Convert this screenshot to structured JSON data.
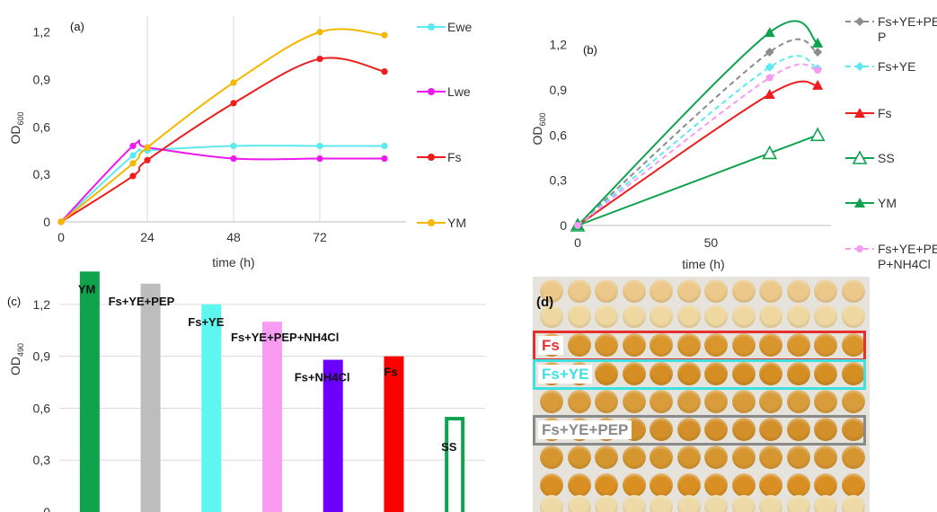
{
  "chart_data": [
    {
      "type": "line",
      "panel_label": "(a)",
      "xlabel": "time (h)",
      "ylabel": "OD",
      "ylabel_sub": "600",
      "xlim": [
        0,
        96
      ],
      "ylim": [
        0,
        1.3
      ],
      "x_ticks": [
        0,
        24,
        48,
        72
      ],
      "x_tick_labels": [
        "0",
        "24",
        "48",
        "72"
      ],
      "y_ticks": [
        0,
        0.3,
        0.6,
        0.9,
        1.2
      ],
      "y_tick_labels": [
        "0",
        "0,3",
        "0,6",
        "0,9",
        "1,2"
      ],
      "grid": "vertical",
      "legend_position": "right",
      "series": [
        {
          "name": "Ewe",
          "color": "#5ce9ef",
          "x": [
            0,
            20,
            24,
            48,
            72,
            90
          ],
          "y": [
            0,
            0.42,
            0.45,
            0.48,
            0.48,
            0.48
          ]
        },
        {
          "name": "Lwe",
          "color": "#ee18ee",
          "x": [
            0,
            20,
            24,
            48,
            72,
            90
          ],
          "y": [
            0,
            0.48,
            0.47,
            0.4,
            0.4,
            0.4
          ]
        },
        {
          "name": "Fs",
          "color": "#ee1c1c",
          "x": [
            0,
            20,
            24,
            48,
            72,
            90
          ],
          "y": [
            0,
            0.29,
            0.39,
            0.75,
            1.03,
            0.95
          ]
        },
        {
          "name": "YM",
          "color": "#f5b800",
          "x": [
            0,
            20,
            24,
            48,
            72,
            90
          ],
          "y": [
            0,
            0.37,
            0.47,
            0.88,
            1.2,
            1.18
          ]
        }
      ]
    },
    {
      "type": "line",
      "panel_label": "(b)",
      "xlabel": "time (h)",
      "ylabel": "OD",
      "ylabel_sub": "600",
      "xlim": [
        0,
        95
      ],
      "ylim": [
        0,
        1.4
      ],
      "x_ticks": [
        0,
        50
      ],
      "x_tick_labels": [
        "0",
        "50"
      ],
      "y_ticks": [
        0,
        0.3,
        0.6,
        0.9,
        1.2
      ],
      "y_tick_labels": [
        "0",
        "0,3",
        "0,6",
        "0,9",
        "1,2"
      ],
      "grid": "none",
      "legend_position": "right",
      "series": [
        {
          "name": "Fs+YE+PEP",
          "legend_lines": [
            "Fs+YE+PE",
            "P"
          ],
          "color": "#8c8c8c",
          "style": "dashed",
          "marker": "diamond",
          "x": [
            0,
            72,
            90
          ],
          "y": [
            0,
            1.15,
            1.15
          ]
        },
        {
          "name": "Fs+YE",
          "legend_lines": [
            "Fs+YE"
          ],
          "color": "#5ce9ef",
          "style": "dashed",
          "marker": "diamond",
          "x": [
            0,
            72,
            90
          ],
          "y": [
            0,
            1.05,
            1.04
          ]
        },
        {
          "name": "Fs",
          "legend_lines": [
            "Fs"
          ],
          "color": "#ee1c1c",
          "style": "solid",
          "marker": "triangle",
          "x": [
            0,
            72,
            90
          ],
          "y": [
            0,
            0.87,
            0.93
          ]
        },
        {
          "name": "SS",
          "legend_lines": [
            "SS"
          ],
          "color": "#0fa34e",
          "style": "solid",
          "marker": "triangle-open",
          "x": [
            0,
            72,
            90
          ],
          "y": [
            0,
            0.48,
            0.6
          ]
        },
        {
          "name": "YM",
          "legend_lines": [
            "YM"
          ],
          "color": "#0fa34e",
          "style": "solid",
          "marker": "triangle",
          "x": [
            0,
            72,
            90
          ],
          "y": [
            0,
            1.28,
            1.21
          ]
        },
        {
          "name": "Fs+YE+PEP+NH4Cl",
          "legend_lines": [
            "Fs+YE+PE",
            "P+NH4Cl"
          ],
          "color": "#f59cf0",
          "style": "dashed",
          "marker": "circle",
          "x": [
            0,
            72,
            90
          ],
          "y": [
            0,
            0.98,
            1.03
          ]
        }
      ]
    },
    {
      "type": "bar",
      "panel_label": "(c)",
      "xlabel": "",
      "ylabel": "OD",
      "ylabel_sub": "490",
      "ylim": [
        0,
        1.35
      ],
      "y_ticks": [
        0,
        0.3,
        0.6,
        0.9,
        1.2
      ],
      "y_tick_labels": [
        "0",
        "0,3",
        "0,6",
        "0,9",
        "1,2"
      ],
      "grid": "horizontal",
      "categories": [
        "YM",
        "Fs+YE+PEP",
        "Fs+YE",
        "Fs+YE+PEP+NH4Cl",
        "Fs+NH4Cl",
        "Fs",
        "SS"
      ],
      "values": [
        1.39,
        1.32,
        1.2,
        1.1,
        0.88,
        0.9,
        0.55
      ],
      "colors": [
        "#0fa34e",
        "#bdbdbd",
        "#5ef7f0",
        "#f79cf2",
        "#6b00ff",
        "#ff0000",
        "#0fa34e"
      ],
      "outlined": [
        false,
        false,
        false,
        false,
        false,
        false,
        true
      ]
    }
  ],
  "plate": {
    "panel_label": "(d)",
    "highlights": [
      {
        "label": "Fs",
        "color": "#e53030"
      },
      {
        "label": "Fs+YE",
        "color": "#3fe0e0"
      },
      {
        "label": "Fs+YE+PEP",
        "color": "#8a8a8a"
      }
    ]
  }
}
